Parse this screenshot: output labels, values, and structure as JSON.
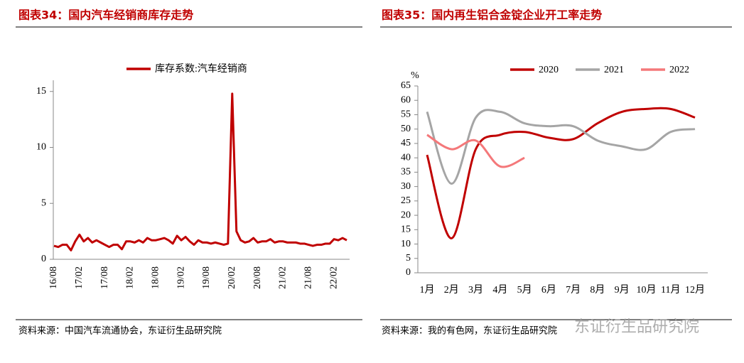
{
  "chart_data": [
    {
      "type": "line",
      "title": "图表34：国内汽车经销商库存走势",
      "source": "资料来源：中国汽车流通协会，东证衍生品研究院",
      "categories": [
        "16/08",
        null,
        null,
        null,
        null,
        null,
        "17/02",
        null,
        null,
        null,
        null,
        null,
        "17/08",
        null,
        null,
        null,
        null,
        null,
        "18/02",
        null,
        null,
        null,
        null,
        null,
        "18/08",
        null,
        null,
        null,
        null,
        null,
        "19/02",
        null,
        null,
        null,
        null,
        null,
        "19/08",
        null,
        null,
        null,
        null,
        null,
        "20/02",
        null,
        null,
        null,
        null,
        null,
        "20/08",
        null,
        null,
        null,
        null,
        null,
        "21/02",
        null,
        null,
        null,
        null,
        null,
        "21/08",
        null,
        null,
        null,
        null,
        null,
        "22/02",
        null,
        null,
        null
      ],
      "series": [
        {
          "name": "库存系数:汽车经销商",
          "color": "#c00000",
          "values": [
            1.2,
            1.1,
            1.3,
            1.3,
            0.8,
            1.6,
            2.2,
            1.6,
            1.9,
            1.5,
            1.7,
            1.5,
            1.3,
            1.1,
            1.3,
            1.3,
            0.9,
            1.6,
            1.6,
            1.5,
            1.7,
            1.5,
            1.9,
            1.7,
            1.7,
            1.8,
            1.9,
            1.7,
            1.4,
            2.1,
            1.7,
            2.0,
            1.6,
            1.3,
            1.7,
            1.5,
            1.5,
            1.4,
            1.5,
            1.4,
            1.3,
            1.4,
            14.8,
            2.5,
            1.7,
            1.5,
            1.6,
            1.9,
            1.5,
            1.6,
            1.6,
            1.8,
            1.5,
            1.6,
            1.6,
            1.5,
            1.5,
            1.5,
            1.4,
            1.4,
            1.3,
            1.2,
            1.3,
            1.3,
            1.4,
            1.4,
            1.8,
            1.7,
            1.9,
            1.7
          ]
        }
      ],
      "ylim": [
        0,
        16
      ],
      "yticks": [
        0,
        5,
        10,
        15
      ],
      "smooth": false
    },
    {
      "type": "line",
      "title": "图表35：国内再生铝合金锭企业开工率走势",
      "source": "资料来源：我的有色网，东证衍生品研究院",
      "y_label": "%",
      "categories": [
        "1月",
        "2月",
        "3月",
        "4月",
        "5月",
        "6月",
        "7月",
        "8月",
        "9月",
        "10月",
        "11月",
        "12月"
      ],
      "series": [
        {
          "name": "2020",
          "color": "#c00000",
          "values": [
            41,
            12,
            43,
            48,
            49,
            47,
            46.5,
            52,
            56,
            57,
            57,
            54
          ]
        },
        {
          "name": "2021",
          "color": "#a5a5a5",
          "values": [
            56,
            31,
            54,
            56,
            52,
            51,
            51,
            46,
            44,
            43,
            49,
            50
          ]
        },
        {
          "name": "2022",
          "color": "#f4787a",
          "values": [
            48,
            43,
            46,
            37,
            40,
            null,
            null,
            null,
            null,
            null,
            null,
            null
          ]
        }
      ],
      "ylim": [
        0,
        65
      ],
      "yticks": [
        0,
        5,
        10,
        15,
        20,
        25,
        30,
        35,
        40,
        45,
        50,
        55,
        60,
        65
      ],
      "smooth": true
    }
  ],
  "watermark": "东证衍生品研究院"
}
